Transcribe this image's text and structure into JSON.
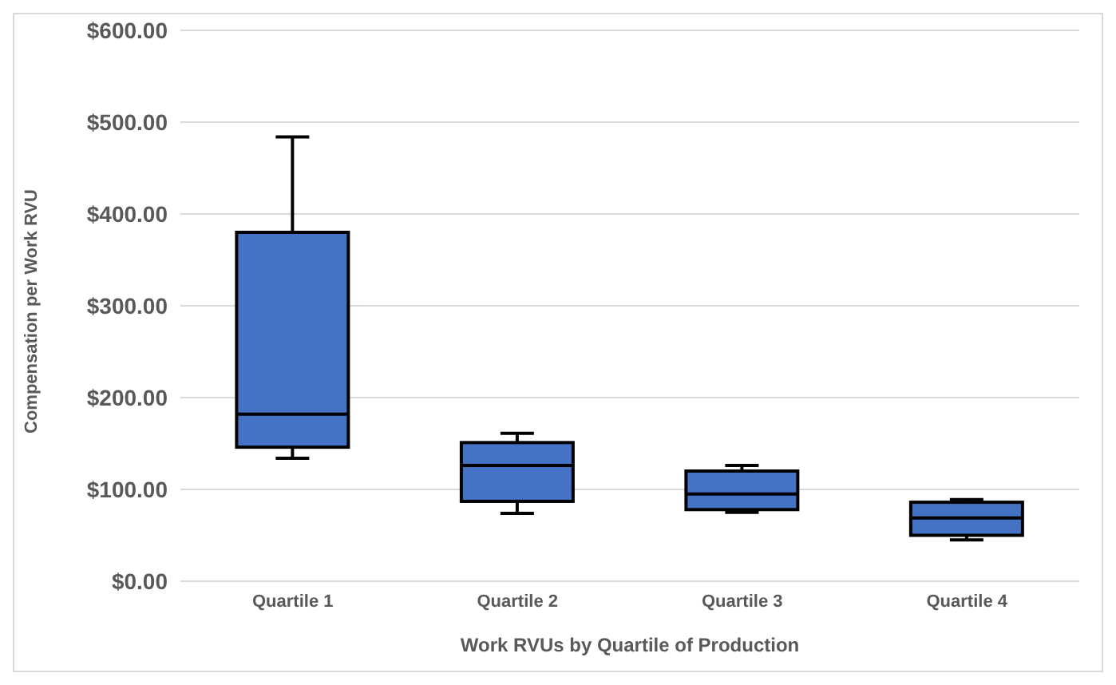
{
  "chart_data": {
    "type": "box",
    "xlabel": "Work RVUs by Quartile of Production",
    "ylabel": "Compensation per Work RVU",
    "categories": [
      "Quartile 1",
      "Quartile 2",
      "Quartile 3",
      "Quartile 4"
    ],
    "color": "#4472c4",
    "boxes": [
      {
        "low": 134,
        "q1": 146,
        "median": 182,
        "q3": 380,
        "high": 484
      },
      {
        "low": 74,
        "q1": 87,
        "median": 126,
        "q3": 151,
        "high": 161
      },
      {
        "low": 75,
        "q1": 78,
        "median": 95,
        "q3": 120,
        "high": 126
      },
      {
        "low": 45,
        "q1": 50,
        "median": 69,
        "q3": 86,
        "high": 89
      }
    ],
    "ylim": [
      0,
      600
    ],
    "yticks": [
      {
        "value": 0,
        "label": "$0.00"
      },
      {
        "value": 100,
        "label": "$100.00"
      },
      {
        "value": 200,
        "label": "$200.00"
      },
      {
        "value": 300,
        "label": "$300.00"
      },
      {
        "value": 400,
        "label": "$400.00"
      },
      {
        "value": 500,
        "label": "$500.00"
      },
      {
        "value": 600,
        "label": "$600.00"
      }
    ],
    "grid": "y"
  }
}
